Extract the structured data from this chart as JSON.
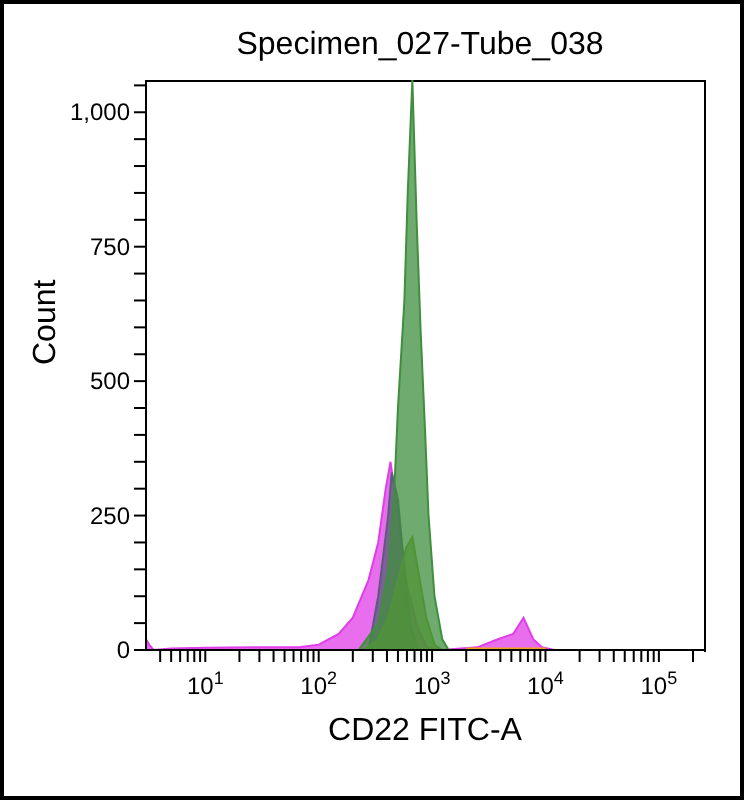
{
  "chart_data": {
    "type": "area",
    "title": "Specimen_027-Tube_038",
    "xlabel": "CD22 FITC-A",
    "ylabel": "Count",
    "log": "x",
    "xlim": [
      3,
      250000
    ],
    "xticks": [
      {
        "value": 4,
        "label": null
      },
      {
        "value": 5,
        "label": null
      },
      {
        "value": 6,
        "label": null
      },
      {
        "value": 7,
        "label": null
      },
      {
        "value": 8,
        "label": null
      },
      {
        "value": 9,
        "label": null
      },
      {
        "value": 10,
        "label": "10$^{1}$"
      },
      {
        "value": 20,
        "label": null
      },
      {
        "value": 30,
        "label": null
      },
      {
        "value": 40,
        "label": null
      },
      {
        "value": 50,
        "label": null
      },
      {
        "value": 60,
        "label": null
      },
      {
        "value": 70,
        "label": null
      },
      {
        "value": 80,
        "label": null
      },
      {
        "value": 90,
        "label": null
      },
      {
        "value": 100,
        "label": "10$^{2}$"
      },
      {
        "value": 200,
        "label": null
      },
      {
        "value": 300,
        "label": null
      },
      {
        "value": 400,
        "label": null
      },
      {
        "value": 500,
        "label": null
      },
      {
        "value": 600,
        "label": null
      },
      {
        "value": 700,
        "label": null
      },
      {
        "value": 800,
        "label": null
      },
      {
        "value": 900,
        "label": null
      },
      {
        "value": 1000,
        "label": "10$^{3}$"
      },
      {
        "value": 2000,
        "label": null
      },
      {
        "value": 3000,
        "label": null
      },
      {
        "value": 4000,
        "label": null
      },
      {
        "value": 5000,
        "label": null
      },
      {
        "value": 6000,
        "label": null
      },
      {
        "value": 7000,
        "label": null
      },
      {
        "value": 8000,
        "label": null
      },
      {
        "value": 9000,
        "label": null
      },
      {
        "value": 10000,
        "label": "10$^{4}$"
      },
      {
        "value": 20000,
        "label": null
      },
      {
        "value": 30000,
        "label": null
      },
      {
        "value": 40000,
        "label": null
      },
      {
        "value": 50000,
        "label": null
      },
      {
        "value": 60000,
        "label": null
      },
      {
        "value": 70000,
        "label": null
      },
      {
        "value": 80000,
        "label": null
      },
      {
        "value": 90000,
        "label": null
      },
      {
        "value": 100000,
        "label": "10$^{5}$"
      },
      {
        "value": 200000,
        "label": null
      }
    ],
    "ylim": [
      0,
      1060
    ],
    "yticks": [
      0,
      {
        "value": 50,
        "label": null
      },
      {
        "value": 100,
        "label": null
      },
      {
        "value": 150,
        "label": null
      },
      {
        "value": 200,
        "label": null
      },
      250,
      {
        "value": 300,
        "label": null
      },
      {
        "value": 350,
        "label": null
      },
      {
        "value": 400,
        "label": null
      },
      {
        "value": 450,
        "label": null
      },
      500,
      {
        "value": 550,
        "label": null
      },
      {
        "value": 600,
        "label": null
      },
      {
        "value": 650,
        "label": null
      },
      {
        "value": 700,
        "label": null
      },
      750,
      {
        "value": 800,
        "label": null
      },
      {
        "value": 850,
        "label": null
      },
      {
        "value": 900,
        "label": null
      },
      {
        "value": 950,
        "label": null
      },
      {
        "value": 1000,
        "label": "1,000"
      },
      {
        "value": 1050,
        "label": null
      }
    ],
    "series": [
      {
        "color": "#e03ee8",
        "x": [
          3,
          3.2,
          3.5,
          5,
          10,
          30,
          67,
          100,
          150,
          200,
          275,
          335,
          390,
          430,
          500,
          600,
          750,
          900,
          1200,
          2500,
          3800,
          5200,
          6400,
          7800,
          9300,
          12000,
          20000
        ],
        "values": [
          20,
          10,
          0,
          3,
          4,
          5,
          5,
          10,
          30,
          60,
          130,
          200,
          300,
          350,
          250,
          120,
          40,
          5,
          0,
          5,
          20,
          30,
          60,
          20,
          5,
          0,
          0
        ]
      },
      {
        "color": "#5c5c7c",
        "x": [
          275,
          335,
          410,
          440,
          500,
          570,
          640,
          750
        ],
        "values": [
          0,
          100,
          250,
          330,
          280,
          150,
          50,
          0
        ]
      },
      {
        "color": "#7f9f1f",
        "x": [
          250,
          335,
          410,
          500,
          590,
          670,
          750,
          890,
          1050,
          1230
        ],
        "values": [
          0,
          20,
          60,
          130,
          190,
          210,
          150,
          60,
          10,
          0
        ]
      },
      {
        "color": "#3f8f3f",
        "x": [
          225,
          335,
          410,
          465,
          500,
          570,
          610,
          670,
          730,
          790,
          870,
          930,
          1050,
          1230,
          1400
        ],
        "values": [
          0,
          50,
          150,
          300,
          450,
          650,
          850,
          1060,
          800,
          600,
          400,
          250,
          100,
          20,
          0
        ]
      },
      {
        "color": "#f0a020",
        "x": [
          2000,
          3000,
          5000,
          8000,
          10000
        ],
        "values": [
          3,
          3,
          3,
          3,
          3
        ]
      }
    ]
  }
}
